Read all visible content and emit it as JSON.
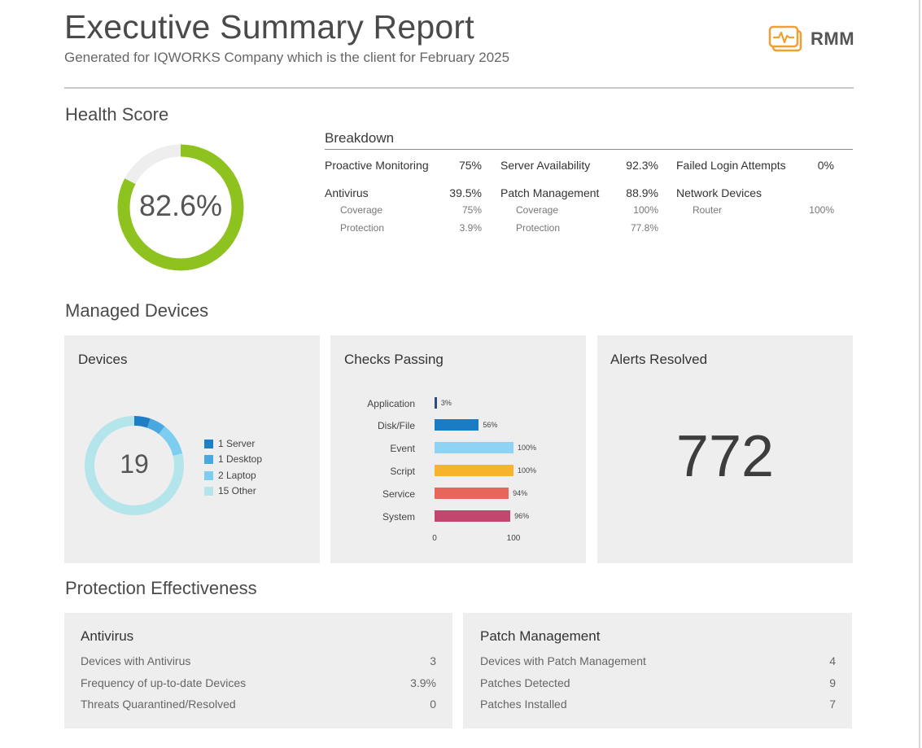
{
  "header": {
    "title": "Executive Summary Report",
    "subtitle": "Generated for IQWORKS Company which is the client for February 2025",
    "logo_text": "RMM",
    "logo_color": "#f0a030"
  },
  "health": {
    "section_title": "Health Score",
    "score_label": "82.6%",
    "score": 0.826,
    "ring_color": "#8dc21f",
    "track_color": "#eeeeee",
    "breakdown_title": "Breakdown",
    "items": {
      "proactive_label": "Proactive Monitoring",
      "proactive_val": "75%",
      "server_label": "Server Availability",
      "server_val": "92.3%",
      "failed_label": "Failed Login Attempts",
      "failed_val": "0%",
      "antivirus_label": "Antivirus",
      "antivirus_val": "39.5%",
      "av_coverage_label": "Coverage",
      "av_coverage_val": "75%",
      "av_protection_label": "Protection",
      "av_protection_val": "3.9%",
      "patch_label": "Patch Management",
      "patch_val": "88.9%",
      "pm_coverage_label": "Coverage",
      "pm_coverage_val": "100%",
      "pm_protection_label": "Protection",
      "pm_protection_val": "77.8%",
      "network_label": "Network Devices",
      "router_label": "Router",
      "router_val": "100%"
    }
  },
  "managed": {
    "section_title": "Managed Devices",
    "devices": {
      "title": "Devices",
      "total": "19",
      "legend": [
        {
          "label": "1 Server",
          "count": 1,
          "color": "#1f7fc4"
        },
        {
          "label": "1 Desktop",
          "count": 1,
          "color": "#4aa8e0"
        },
        {
          "label": "2 Laptop",
          "count": 2,
          "color": "#7dcdf0"
        },
        {
          "label": "15 Other",
          "count": 15,
          "color": "#b4e5ea"
        }
      ]
    },
    "checks": {
      "title": "Checks Passing",
      "axis_min": "0",
      "axis_max": "100"
    },
    "alerts": {
      "title": "Alerts Resolved",
      "value": "772"
    }
  },
  "chart_data": {
    "type": "bar",
    "orientation": "horizontal",
    "title": "Checks Passing",
    "categories": [
      "Application",
      "Disk/File",
      "Event",
      "Script",
      "Service",
      "System"
    ],
    "values": [
      3,
      56,
      100,
      100,
      94,
      96
    ],
    "value_labels": [
      "3%",
      "56%",
      "100%",
      "100%",
      "94%",
      "96%"
    ],
    "colors": [
      "#2b4c7e",
      "#1a7cc4",
      "#8dd3f3",
      "#f7b32b",
      "#e8655a",
      "#c0476e"
    ],
    "xlim": [
      0,
      100
    ]
  },
  "protection": {
    "section_title": "Protection Effectiveness",
    "antivirus": {
      "title": "Antivirus",
      "rows": [
        {
          "label": "Devices with Antivirus",
          "value": "3"
        },
        {
          "label": "Frequency of up-to-date Devices",
          "value": "3.9%"
        },
        {
          "label": "Threats Quarantined/Resolved",
          "value": "0"
        }
      ]
    },
    "patch": {
      "title": "Patch Management",
      "rows": [
        {
          "label": "Devices with Patch Management",
          "value": "4"
        },
        {
          "label": "Patches Detected",
          "value": "9"
        },
        {
          "label": "Patches Installed",
          "value": "7"
        }
      ]
    }
  }
}
